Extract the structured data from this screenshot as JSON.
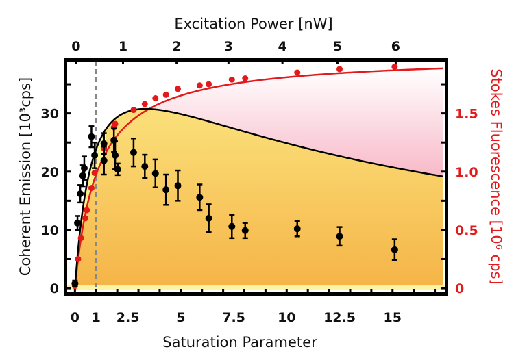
{
  "chart_data": {
    "type": "scatter",
    "title": "",
    "xlabel": "Saturation Parameter",
    "x2label": "Excitation Power [nW]",
    "ylabel": "Coherent Emission [10³cps]",
    "y2label": "Stokes Fluorescence [10⁶ cps]",
    "xlim": [
      -0.4,
      17.5
    ],
    "ylim": [
      -0.7,
      39
    ],
    "y2lim": [
      -0.035,
      1.95
    ],
    "x_ticks": [
      0,
      1,
      2.5,
      5,
      7.5,
      10,
      12.5,
      15
    ],
    "x_tick_labels": [
      "0",
      "1",
      "2.5",
      "5",
      "7.5",
      "10",
      "12.5",
      "15"
    ],
    "x2_ticks_at_S": [
      0.05,
      2.27,
      4.8,
      7.25,
      9.8,
      12.4,
      15.15
    ],
    "x2_tick_labels": [
      "0",
      "1",
      "2",
      "3",
      "4",
      "5",
      "6"
    ],
    "y_ticks": [
      0,
      10,
      20,
      30
    ],
    "y_tick_labels": [
      "0",
      "10",
      "20",
      "30"
    ],
    "y2_ticks": [
      0,
      0.5,
      1.0,
      1.5
    ],
    "y2_tick_labels": [
      "0",
      "0.5",
      "1.0",
      "1.5"
    ],
    "vline_x": 1,
    "grid": false,
    "series": [
      {
        "name": "Coherent Emission",
        "axis": "left",
        "color": "#000000",
        "points": [
          {
            "x": 0.0,
            "y": 0.8,
            "err": 0.5
          },
          {
            "x": 0.12,
            "y": 11.2,
            "err": 1.2
          },
          {
            "x": 0.25,
            "y": 16.2,
            "err": 1.5
          },
          {
            "x": 0.37,
            "y": 19.3,
            "err": 1.8
          },
          {
            "x": 0.44,
            "y": 20.6,
            "err": 2.0
          },
          {
            "x": 0.78,
            "y": 26.0,
            "err": 1.8
          },
          {
            "x": 0.93,
            "y": 22.8,
            "err": 2.2
          },
          {
            "x": 1.37,
            "y": 24.8,
            "err": 1.8
          },
          {
            "x": 1.37,
            "y": 21.9,
            "err": 2.4
          },
          {
            "x": 1.84,
            "y": 25.4,
            "err": 2.0
          },
          {
            "x": 1.9,
            "y": 22.8,
            "err": 2.4
          },
          {
            "x": 2.02,
            "y": 20.4,
            "err": 1.0
          },
          {
            "x": 2.77,
            "y": 23.3,
            "err": 2.4
          },
          {
            "x": 3.3,
            "y": 20.9,
            "err": 2.0
          },
          {
            "x": 3.8,
            "y": 19.7,
            "err": 2.4
          },
          {
            "x": 4.3,
            "y": 16.9,
            "err": 2.6
          },
          {
            "x": 4.86,
            "y": 17.6,
            "err": 2.6
          },
          {
            "x": 5.89,
            "y": 15.6,
            "err": 2.2
          },
          {
            "x": 6.32,
            "y": 12.0,
            "err": 2.4
          },
          {
            "x": 7.41,
            "y": 10.6,
            "err": 2.0
          },
          {
            "x": 8.04,
            "y": 9.9,
            "err": 1.3
          },
          {
            "x": 10.5,
            "y": 10.2,
            "err": 1.3
          },
          {
            "x": 12.5,
            "y": 8.9,
            "err": 1.6
          },
          {
            "x": 15.1,
            "y": 6.6,
            "err": 1.8
          }
        ],
        "fit": "coherent"
      },
      {
        "name": "Stokes Fluorescence",
        "axis": "right",
        "color": "#e31a1c",
        "points": [
          {
            "x": 0.0,
            "y": 0.02
          },
          {
            "x": 0.15,
            "y": 0.25
          },
          {
            "x": 0.28,
            "y": 0.43
          },
          {
            "x": 0.49,
            "y": 0.6
          },
          {
            "x": 0.56,
            "y": 0.67
          },
          {
            "x": 0.78,
            "y": 0.86
          },
          {
            "x": 0.93,
            "y": 0.99
          },
          {
            "x": 1.37,
            "y": 1.2
          },
          {
            "x": 1.84,
            "y": 1.38
          },
          {
            "x": 1.9,
            "y": 1.41
          },
          {
            "x": 2.77,
            "y": 1.53
          },
          {
            "x": 3.3,
            "y": 1.58
          },
          {
            "x": 3.8,
            "y": 1.63
          },
          {
            "x": 4.3,
            "y": 1.66
          },
          {
            "x": 4.86,
            "y": 1.71
          },
          {
            "x": 5.89,
            "y": 1.74
          },
          {
            "x": 6.32,
            "y": 1.75
          },
          {
            "x": 7.41,
            "y": 1.79
          },
          {
            "x": 8.04,
            "y": 1.8
          },
          {
            "x": 10.5,
            "y": 1.85
          },
          {
            "x": 12.5,
            "y": 1.88
          },
          {
            "x": 15.1,
            "y": 1.9
          }
        ],
        "fit": "stokes"
      }
    ],
    "colors": {
      "coherent_fill_light": "#fbf27a",
      "coherent_fill_orange": "#f5b447",
      "stokes_fill_top": "#ffffff",
      "stokes_fill_bottom": "#f07090",
      "vline": "#888888"
    }
  }
}
